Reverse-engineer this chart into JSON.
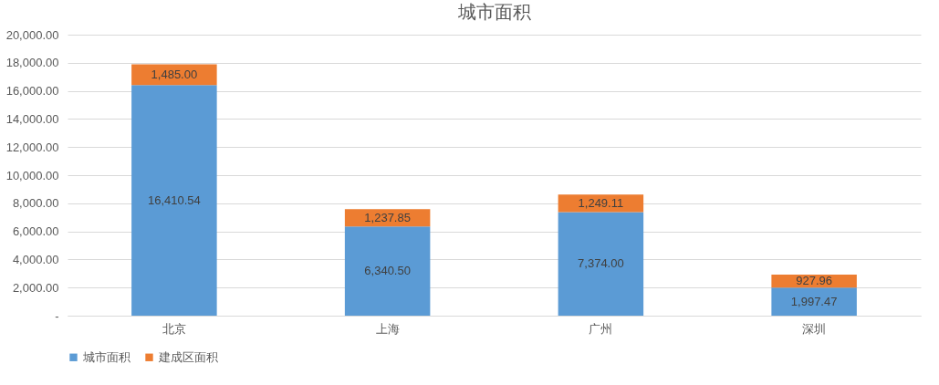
{
  "chart_data": {
    "type": "bar",
    "title": "城市面积",
    "categories": [
      "北京",
      "上海",
      "广州",
      "深圳"
    ],
    "stacked": true,
    "series": [
      {
        "name": "城市面积",
        "color": "#5b9bd5",
        "values": [
          16410.54,
          6340.5,
          7374,
          1997.47
        ],
        "value_labels": [
          "16,410.54",
          "6,340.50",
          "7,374.00",
          "1,997.47"
        ]
      },
      {
        "name": "建成区面积",
        "color": "#ed7d31",
        "values": [
          1485,
          1237.85,
          1249.11,
          927.96
        ],
        "value_labels": [
          "1,485.00",
          "1,237.85",
          "1,249.11",
          "927.96"
        ]
      }
    ],
    "ylim": [
      0,
      20000
    ],
    "yticks": [
      {
        "value": 0,
        "label": "-"
      },
      {
        "value": 2000,
        "label": "2,000.00"
      },
      {
        "value": 4000,
        "label": "4,000.00"
      },
      {
        "value": 6000,
        "label": "6,000.00"
      },
      {
        "value": 8000,
        "label": "8,000.00"
      },
      {
        "value": 10000,
        "label": "10,000.00"
      },
      {
        "value": 12000,
        "label": "12,000.00"
      },
      {
        "value": 14000,
        "label": "14,000.00"
      },
      {
        "value": 16000,
        "label": "16,000.00"
      },
      {
        "value": 18000,
        "label": "18,000.00"
      },
      {
        "value": 20000,
        "label": "20,000.00"
      }
    ],
    "grid": "y",
    "legend": "bottom"
  }
}
